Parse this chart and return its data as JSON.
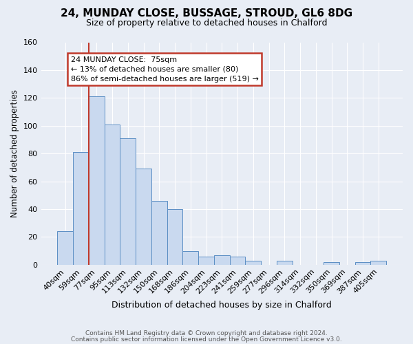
{
  "title": "24, MUNDAY CLOSE, BUSSAGE, STROUD, GL6 8DG",
  "subtitle": "Size of property relative to detached houses in Chalford",
  "xlabel": "Distribution of detached houses by size in Chalford",
  "ylabel": "Number of detached properties",
  "bar_labels": [
    "40sqm",
    "59sqm",
    "77sqm",
    "95sqm",
    "113sqm",
    "132sqm",
    "150sqm",
    "168sqm",
    "186sqm",
    "204sqm",
    "223sqm",
    "241sqm",
    "259sqm",
    "277sqm",
    "296sqm",
    "314sqm",
    "332sqm",
    "350sqm",
    "369sqm",
    "387sqm",
    "405sqm"
  ],
  "bar_values": [
    24,
    81,
    121,
    101,
    91,
    69,
    46,
    40,
    10,
    6,
    7,
    6,
    3,
    0,
    3,
    0,
    0,
    2,
    0,
    2,
    3
  ],
  "bar_color": "#c9d9ef",
  "bar_edge_color": "#5b8ec4",
  "ylim": [
    0,
    160
  ],
  "yticks": [
    0,
    20,
    40,
    60,
    80,
    100,
    120,
    140,
    160
  ],
  "vline_color": "#c0392b",
  "annotation_title": "24 MUNDAY CLOSE:  75sqm",
  "annotation_line1": "← 13% of detached houses are smaller (80)",
  "annotation_line2": "86% of semi-detached houses are larger (519) →",
  "annotation_box_color": "#ffffff",
  "annotation_box_edge": "#c0392b",
  "footer1": "Contains HM Land Registry data © Crown copyright and database right 2024.",
  "footer2": "Contains public sector information licensed under the Open Government Licence v3.0.",
  "background_color": "#e8edf5",
  "plot_background": "#e8edf5",
  "grid_color": "#ffffff"
}
